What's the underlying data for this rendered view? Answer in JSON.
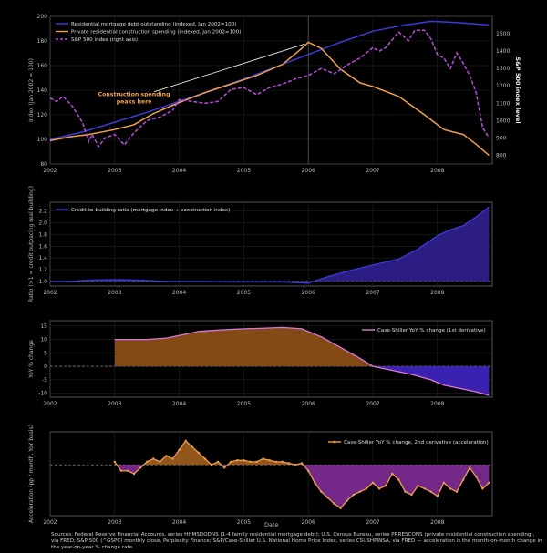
{
  "chart_data": [
    {
      "type": "line",
      "title": "",
      "xlabel": "",
      "ylabel": "Index (Jan 2002 = 100)",
      "y2label": "S&P 500 index level",
      "xlim": [
        2002,
        2008.85
      ],
      "ylim": [
        80,
        200
      ],
      "y2lim": [
        750,
        1600
      ],
      "x_ticks": [
        "2002",
        "2003",
        "2004",
        "2005",
        "2006",
        "2007",
        "2008"
      ],
      "y_ticks": [
        "80",
        "100",
        "120",
        "140",
        "160",
        "180",
        "200"
      ],
      "y2_ticks": [
        "800",
        "900",
        "1000",
        "1100",
        "1200",
        "1300",
        "1400",
        "1500"
      ],
      "legend_position": "top-left",
      "grid": true,
      "series": [
        {
          "name": "Residential mortgage debt outstanding (indexed, Jan 2002=100)",
          "color": "#3b3bd9",
          "axis": "left",
          "x": [
            2002,
            2002.5,
            2003,
            2003.5,
            2004,
            2004.5,
            2005,
            2005.5,
            2006,
            2006.5,
            2007,
            2007.5,
            2007.9,
            2008.3,
            2008.8
          ],
          "y": [
            100,
            106,
            114,
            122,
            131,
            140,
            149,
            159,
            169,
            179,
            188,
            193,
            196,
            195,
            193
          ]
        },
        {
          "name": "Private residential construction spending (indexed, Jan 2002=100)",
          "color": "#f0a04b",
          "axis": "left",
          "x": [
            2002,
            2002.3,
            2002.6,
            2003,
            2003.3,
            2003.6,
            2004,
            2004.4,
            2004.8,
            2005.2,
            2005.6,
            2005.9,
            2006,
            2006.2,
            2006.5,
            2006.8,
            2007,
            2007.4,
            2007.8,
            2008.1,
            2008.4,
            2008.6,
            2008.8
          ],
          "y": [
            99,
            102,
            104,
            108,
            112,
            121,
            130,
            138,
            145,
            152,
            161,
            174,
            179,
            174,
            157,
            146,
            143,
            135,
            120,
            108,
            104,
            96,
            87
          ]
        },
        {
          "name": "S&P 500 index (right axis)",
          "color": "#b44fd8",
          "axis": "right",
          "dashed": true,
          "x": [
            2002,
            2002.1,
            2002.2,
            2002.35,
            2002.5,
            2002.6,
            2002.65,
            2002.75,
            2002.85,
            2003,
            2003.15,
            2003.3,
            2003.5,
            2003.7,
            2003.9,
            2004,
            2004.2,
            2004.4,
            2004.6,
            2004.8,
            2005,
            2005.2,
            2005.4,
            2005.6,
            2005.8,
            2006,
            2006.2,
            2006.4,
            2006.6,
            2006.8,
            2007,
            2007.1,
            2007.2,
            2007.4,
            2007.55,
            2007.65,
            2007.8,
            2007.9,
            2008,
            2008.1,
            2008.2,
            2008.3,
            2008.4,
            2008.5,
            2008.6,
            2008.7,
            2008.8
          ],
          "y": [
            1130,
            1110,
            1140,
            1080,
            990,
            880,
            920,
            850,
            900,
            920,
            860,
            930,
            1000,
            1020,
            1060,
            1120,
            1110,
            1100,
            1110,
            1180,
            1190,
            1150,
            1190,
            1210,
            1240,
            1260,
            1300,
            1270,
            1320,
            1360,
            1420,
            1400,
            1420,
            1510,
            1460,
            1520,
            1520,
            1470,
            1380,
            1360,
            1300,
            1390,
            1330,
            1260,
            1160,
            960,
            900
          ]
        }
      ],
      "annotations": [
        {
          "text": "Construction spending peaks here",
          "x": 2003.3,
          "y": 121,
          "arrow_to_x": 2006.0,
          "arrow_to_y": 179
        }
      ],
      "vline_x": 2006.0
    },
    {
      "type": "area",
      "title": "",
      "xlabel": "",
      "ylabel": "Ratio (>1 = credit outpacing real building)",
      "xlim": [
        2002,
        2008.85
      ],
      "ylim": [
        0.92,
        2.35
      ],
      "x_ticks": [
        "2002",
        "2003",
        "2004",
        "2005",
        "2006",
        "2007",
        "2008"
      ],
      "y_ticks": [
        "1.0",
        "1.2",
        "1.4",
        "1.6",
        "1.8",
        "2.0",
        "2.2"
      ],
      "legend_position": "top-left",
      "reference_y": 1.0,
      "series": [
        {
          "name": "Credit-to-building ratio (mortgage index ÷ construction index)",
          "color": "#3b3bd9",
          "x": [
            2002,
            2002.3,
            2002.6,
            2003,
            2003.4,
            2003.8,
            2004,
            2004.4,
            2004.8,
            2005.2,
            2005.6,
            2006,
            2006.3,
            2006.6,
            2007,
            2007.4,
            2007.7,
            2008,
            2008.2,
            2008.4,
            2008.6,
            2008.8
          ],
          "y": [
            1.0,
            1.0,
            1.02,
            1.03,
            1.02,
            1.0,
            1.0,
            1.0,
            0.99,
            0.99,
            0.99,
            0.97,
            1.08,
            1.17,
            1.28,
            1.38,
            1.55,
            1.78,
            1.88,
            1.95,
            2.1,
            2.27
          ]
        }
      ]
    },
    {
      "type": "area",
      "title": "",
      "xlabel": "",
      "ylabel": "YoY % change",
      "xlim": [
        2002,
        2008.85
      ],
      "ylim": [
        -11.5,
        17
      ],
      "x_ticks": [
        "2002",
        "2003",
        "2004",
        "2005",
        "2006",
        "2007",
        "2008"
      ],
      "y_ticks": [
        "-10",
        "-5",
        "0",
        "5",
        "10",
        "15"
      ],
      "legend_position": "right",
      "reference_y": 0,
      "series": [
        {
          "name": "Case-Shiller YoY % change (1st derivative)",
          "color": "#d87ad8",
          "x": [
            2003,
            2003.2,
            2003.5,
            2003.8,
            2004,
            2004.3,
            2004.6,
            2005,
            2005.3,
            2005.6,
            2005.9,
            2006,
            2006.2,
            2006.5,
            2006.8,
            2007,
            2007.3,
            2007.6,
            2007.9,
            2008.1,
            2008.4,
            2008.6,
            2008.8
          ],
          "y": [
            10,
            10,
            10,
            10.5,
            11.5,
            13,
            13.5,
            14,
            14.2,
            14.5,
            14,
            13,
            11,
            7,
            3,
            0,
            -1.5,
            -3,
            -5,
            -7,
            -8.5,
            -9.5,
            -10.8
          ]
        }
      ]
    },
    {
      "type": "area",
      "title": "",
      "xlabel": "Date",
      "ylabel": "Acceleration (pp / month, YoY basis)",
      "xlim": [
        2002,
        2008.85
      ],
      "ylim": [
        -1.7,
        1.1
      ],
      "x_ticks": [
        "2002",
        "2003",
        "2004",
        "2005",
        "2006",
        "2007",
        "2008"
      ],
      "y_ticks": [],
      "legend_position": "top-right",
      "reference_y": 0,
      "series": [
        {
          "name": "Case-Shiller YoY % change, 2nd derivative (acceleration)",
          "color": "#f0a04b",
          "x": [
            2003,
            2003.1,
            2003.2,
            2003.3,
            2003.4,
            2003.5,
            2003.6,
            2003.7,
            2003.8,
            2003.9,
            2004,
            2004.1,
            2004.2,
            2004.3,
            2004.4,
            2004.5,
            2004.6,
            2004.7,
            2004.8,
            2004.9,
            2005,
            2005.1,
            2005.2,
            2005.3,
            2005.4,
            2005.5,
            2005.6,
            2005.7,
            2005.8,
            2005.9,
            2006,
            2006.1,
            2006.2,
            2006.3,
            2006.4,
            2006.5,
            2006.6,
            2006.7,
            2006.8,
            2006.9,
            2007,
            2007.1,
            2007.2,
            2007.3,
            2007.4,
            2007.5,
            2007.6,
            2007.7,
            2007.8,
            2007.9,
            2008,
            2008.1,
            2008.2,
            2008.3,
            2008.4,
            2008.5,
            2008.6,
            2008.7,
            2008.8
          ],
          "y": [
            0.1,
            -0.2,
            -0.2,
            -0.3,
            -0.1,
            0.1,
            0.2,
            0.1,
            0.3,
            0.2,
            0.5,
            0.8,
            0.6,
            0.4,
            0.2,
            0,
            0.1,
            -0.1,
            0.1,
            0.15,
            0.15,
            0.1,
            0.1,
            0.2,
            0.15,
            0.1,
            0.1,
            0.05,
            0,
            0.05,
            -0.2,
            -0.6,
            -0.9,
            -1.1,
            -1.3,
            -1.45,
            -1.2,
            -1.0,
            -0.9,
            -0.8,
            -0.6,
            -0.8,
            -0.7,
            -0.3,
            -0.5,
            -0.9,
            -1.0,
            -0.7,
            -0.8,
            -0.9,
            -1.05,
            -0.6,
            -0.8,
            -0.9,
            -0.5,
            -0.1,
            -0.4,
            -0.8,
            -0.6
          ]
        }
      ]
    }
  ],
  "footer": {
    "x_axis_label": "Date",
    "sources": "Sources: Federal Reserve Financial Accounts, series HHMSDODNS (1-4 family residential mortgage debt); U.S. Census Bureau, series PRRESCONS (private residential construction spending), via FRED; S&P 500 (^GSPC) monthly close, Perplexity Finance; S&P/Case-Shiller U.S. National Home Price Index, series CSUSHPINSA, via FRED — acceleration is the month-on-month change in the year-on-year % change rate."
  },
  "colors": {
    "background": "#000000",
    "axis": "#6a6a6a",
    "grid": "#2a2a2a",
    "text": "#bbbbbb"
  }
}
